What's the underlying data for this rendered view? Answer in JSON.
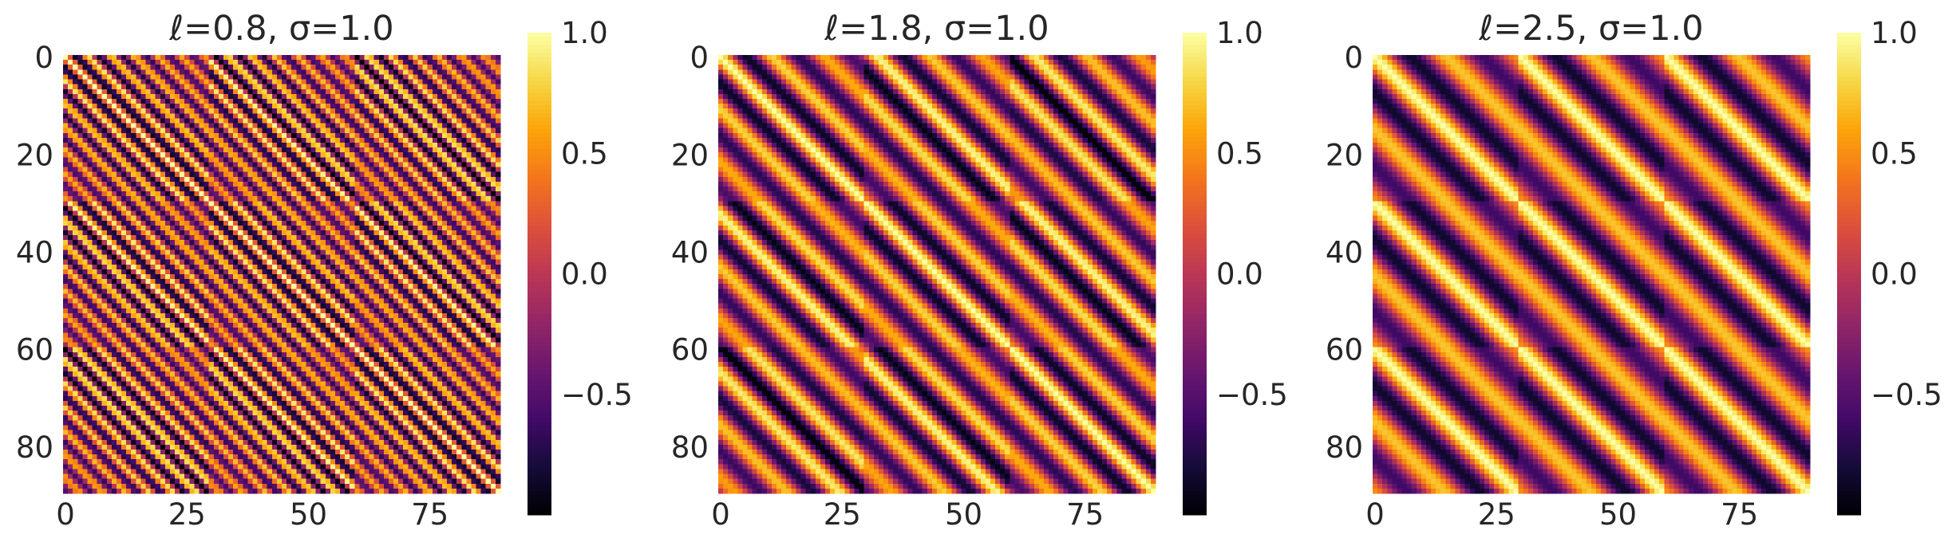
{
  "figure": {
    "background": "#ffffff",
    "colormap": "inferno"
  },
  "chart_data": [
    {
      "type": "heatmap",
      "title": "ℓ=0.8, σ=1.0",
      "lengthscale": 0.8,
      "sigma": 1.0,
      "grid_size": 90,
      "block_size": 30,
      "xticks": [
        0,
        25,
        50,
        75
      ],
      "yticks": [
        0,
        20,
        40,
        60,
        80
      ],
      "colorbar": {
        "vmin": -1.0,
        "vmax": 1.0,
        "ticks": [
          1.0,
          0.5,
          0.0,
          -0.5
        ]
      }
    },
    {
      "type": "heatmap",
      "title": "ℓ=1.8, σ=1.0",
      "lengthscale": 1.8,
      "sigma": 1.0,
      "grid_size": 90,
      "block_size": 30,
      "xticks": [
        0,
        25,
        50,
        75
      ],
      "yticks": [
        0,
        20,
        40,
        60,
        80
      ],
      "colorbar": {
        "vmin": -1.0,
        "vmax": 1.0,
        "ticks": [
          1.0,
          0.5,
          0.0,
          -0.5
        ]
      }
    },
    {
      "type": "heatmap",
      "title": "ℓ=2.5, σ=1.0",
      "lengthscale": 2.5,
      "sigma": 1.0,
      "grid_size": 90,
      "block_size": 30,
      "xticks": [
        0,
        25,
        50,
        75
      ],
      "yticks": [
        0,
        20,
        40,
        60,
        80
      ],
      "colorbar": {
        "vmin": -1.0,
        "vmax": 1.0,
        "ticks": [
          1.0,
          0.5,
          0.0,
          -0.5
        ]
      }
    }
  ]
}
